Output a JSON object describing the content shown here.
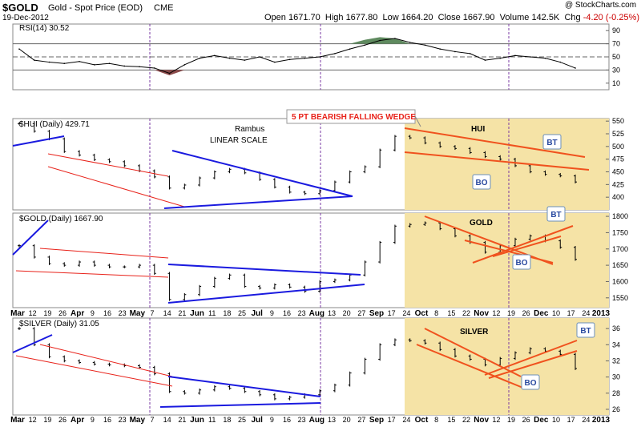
{
  "header": {
    "symbol": "$GOLD",
    "name": "Gold - Spot Price (EOD)",
    "exchange": "CME",
    "date": "19-Dec-2012",
    "copyright": "@ StockCharts.com",
    "open_label": "Open",
    "open": "1671.70",
    "high_label": "High",
    "high": "1677.80",
    "low_label": "Low",
    "low": "1664.20",
    "close_label": "Close",
    "close": "1667.90",
    "volume_label": "Volume",
    "volume": "142.5K",
    "chg_label": "Chg",
    "chg": "-4.20 (-0.25%)"
  },
  "colors": {
    "shade": "#f5e3a6",
    "blue_line": "#1a1adf",
    "red_line": "#e8221a",
    "orange_line": "#f0521e",
    "purple_vline": "#7a3aa3",
    "rsi_up": "#5f8a5f",
    "rsi_down": "#8b4a4a"
  },
  "x_axis": {
    "labels": [
      "Mar",
      "12",
      "19",
      "26",
      "Apr",
      "9",
      "16",
      "23",
      "May",
      "7",
      "14",
      "21",
      "Jun",
      "11",
      "18",
      "25",
      "Jul",
      "9",
      "16",
      "23",
      "Aug",
      "13",
      "20",
      "27",
      "Sep",
      "17",
      "24",
      "Oct",
      "8",
      "15",
      "22",
      "Nov",
      "12",
      "19",
      "26",
      "Dec",
      "10",
      "17",
      "24",
      "2013"
    ]
  },
  "annotations": {
    "rambus": "Rambus",
    "linear": "LINEAR SCALE",
    "wedge": "5 PT BEARISH FALLING WEDGE",
    "hui": "HUI",
    "gold": "GOLD",
    "silver": "SILVER",
    "bt": "BT",
    "bo": "BO"
  },
  "chart_data": [
    {
      "type": "line",
      "title": "RSI(14) 30.52",
      "indicator": "RSI(14)",
      "last": 30.52,
      "ylim": [
        0,
        100
      ],
      "y_ticks": [
        10,
        30,
        50,
        70,
        90
      ],
      "reference_lines": [
        30,
        50,
        70
      ],
      "x": [
        "Mar",
        "Mar 12",
        "Mar 19",
        "Mar 26",
        "Apr",
        "Apr 9",
        "Apr 16",
        "Apr 23",
        "May",
        "May 7",
        "May 14",
        "May 21",
        "Jun",
        "Jun 11",
        "Jun 18",
        "Jun 25",
        "Jul",
        "Jul 9",
        "Jul 16",
        "Jul 23",
        "Aug",
        "Aug 13",
        "Aug 20",
        "Aug 27",
        "Sep",
        "Sep 17",
        "Sep 24",
        "Oct",
        "Oct 8",
        "Oct 15",
        "Oct 22",
        "Nov",
        "Nov 12",
        "Nov 19",
        "Nov 26",
        "Dec",
        "Dec 10",
        "Dec 17"
      ],
      "values": [
        62,
        45,
        42,
        40,
        43,
        38,
        40,
        36,
        35,
        33,
        25,
        38,
        48,
        52,
        48,
        45,
        50,
        42,
        46,
        48,
        50,
        55,
        62,
        68,
        75,
        78,
        72,
        68,
        62,
        58,
        55,
        45,
        48,
        52,
        50,
        48,
        42,
        33
      ]
    },
    {
      "type": "line",
      "title": "$HUI (Daily) 429.71",
      "series_name": "$HUI (Daily)",
      "last": 429.71,
      "ylim": [
        375,
        555
      ],
      "y_ticks": [
        400,
        425,
        450,
        475,
        500,
        525,
        550
      ],
      "x": [
        "Mar",
        "Mar 12",
        "Mar 19",
        "Mar 26",
        "Apr",
        "Apr 9",
        "Apr 16",
        "Apr 23",
        "May",
        "May 7",
        "May 14",
        "May 21",
        "Jun",
        "Jun 11",
        "Jun 18",
        "Jun 25",
        "Jul",
        "Jul 9",
        "Jul 16",
        "Jul 23",
        "Aug",
        "Aug 13",
        "Aug 20",
        "Aug 27",
        "Sep",
        "Sep 17",
        "Sep 24",
        "Oct",
        "Oct 8",
        "Oct 15",
        "Oct 22",
        "Nov",
        "Nov 12",
        "Nov 19",
        "Nov 26",
        "Dec",
        "Dec 10",
        "Dec 17"
      ],
      "values": [
        545,
        530,
        515,
        490,
        483,
        474,
        470,
        462,
        452,
        440,
        418,
        424,
        438,
        450,
        455,
        448,
        435,
        420,
        410,
        407,
        413,
        430,
        450,
        460,
        493,
        520,
        517,
        507,
        500,
        496,
        488,
        480,
        475,
        462,
        450,
        445,
        442,
        430
      ]
    },
    {
      "type": "line",
      "title": "$GOLD (Daily) 1667.90",
      "series_name": "$GOLD (Daily)",
      "last": 1667.9,
      "ylim": [
        1520,
        1810
      ],
      "y_ticks": [
        1550,
        1600,
        1650,
        1700,
        1750,
        1800
      ],
      "x": [
        "Mar",
        "Mar 12",
        "Mar 19",
        "Mar 26",
        "Apr",
        "Apr 9",
        "Apr 16",
        "Apr 23",
        "May",
        "May 7",
        "May 14",
        "May 21",
        "Jun",
        "Jun 11",
        "Jun 18",
        "Jun 25",
        "Jul",
        "Jul 9",
        "Jul 16",
        "Jul 23",
        "Aug",
        "Aug 13",
        "Aug 20",
        "Aug 27",
        "Sep",
        "Sep 17",
        "Sep 24",
        "Oct",
        "Oct 8",
        "Oct 15",
        "Oct 22",
        "Nov",
        "Nov 12",
        "Nov 19",
        "Nov 26",
        "Dec",
        "Dec 10",
        "Dec 17"
      ],
      "values": [
        1710,
        1675,
        1655,
        1650,
        1660,
        1650,
        1645,
        1645,
        1650,
        1625,
        1545,
        1560,
        1585,
        1610,
        1620,
        1585,
        1580,
        1590,
        1583,
        1570,
        1600,
        1605,
        1620,
        1660,
        1720,
        1770,
        1775,
        1780,
        1762,
        1740,
        1720,
        1690,
        1710,
        1730,
        1740,
        1725,
        1705,
        1668
      ]
    },
    {
      "type": "line",
      "title": "$SILVER (Daily) 31.05",
      "series_name": "$SILVER (Daily)",
      "last": 31.05,
      "ylim": [
        25.3,
        37.3
      ],
      "y_ticks": [
        26,
        28,
        30,
        32,
        34,
        36
      ],
      "x": [
        "Mar",
        "Mar 12",
        "Mar 19",
        "Mar 26",
        "Apr",
        "Apr 9",
        "Apr 16",
        "Apr 23",
        "May",
        "May 7",
        "May 14",
        "May 21",
        "Jun",
        "Jun 11",
        "Jun 18",
        "Jun 25",
        "Jul",
        "Jul 9",
        "Jul 16",
        "Jul 23",
        "Aug",
        "Aug 13",
        "Aug 20",
        "Aug 27",
        "Sep",
        "Sep 17",
        "Sep 24",
        "Oct",
        "Oct 8",
        "Oct 15",
        "Oct 22",
        "Nov",
        "Nov 12",
        "Nov 19",
        "Nov 26",
        "Dec",
        "Dec 10",
        "Dec 17"
      ],
      "values": [
        36,
        34,
        32.5,
        32,
        31.8,
        31.6,
        31.5,
        31.4,
        31.2,
        30.4,
        28.2,
        28,
        28.4,
        28.8,
        28.6,
        28.2,
        27.8,
        27.3,
        27.5,
        27.8,
        28.3,
        29,
        30.5,
        32.2,
        34,
        34.6,
        34.5,
        34.2,
        33.4,
        32.6,
        32.2,
        31.5,
        32.3,
        33,
        33.5,
        33.2,
        32.8,
        31.05
      ]
    }
  ]
}
